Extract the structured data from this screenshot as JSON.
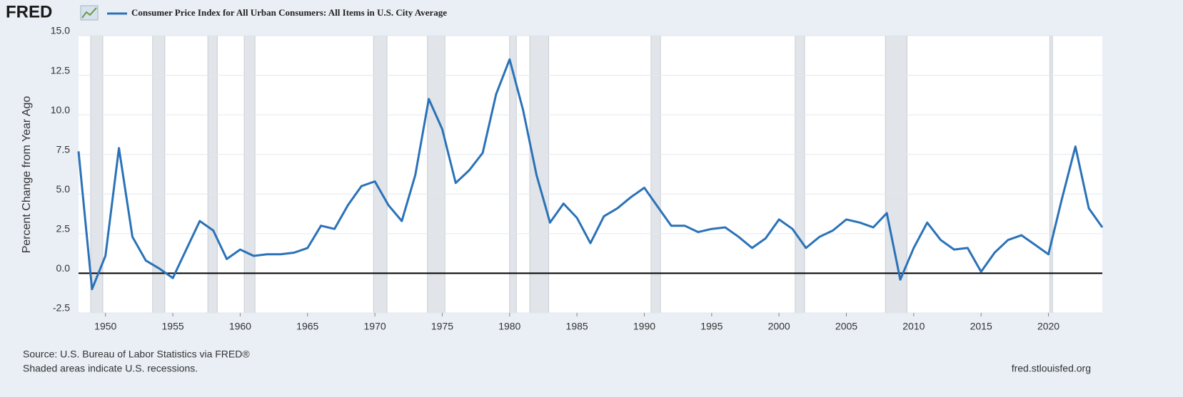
{
  "logo": "FRED",
  "chart_data": {
    "type": "line",
    "series": [
      {
        "name": "Consumer Price Index for All Urban Consumers: All Items in U.S. City Average",
        "color": "#2a72b8",
        "values": [
          7.7,
          -1.0,
          1.1,
          7.9,
          2.3,
          0.8,
          0.3,
          -0.3,
          1.5,
          3.3,
          2.7,
          0.9,
          1.5,
          1.1,
          1.2,
          1.2,
          1.3,
          1.6,
          3.0,
          2.8,
          4.3,
          5.5,
          5.8,
          4.3,
          3.3,
          6.2,
          11.0,
          9.1,
          5.7,
          6.5,
          7.6,
          11.3,
          13.5,
          10.3,
          6.2,
          3.2,
          4.4,
          3.5,
          1.9,
          3.6,
          4.1,
          4.8,
          5.4,
          4.2,
          3.0,
          3.0,
          2.6,
          2.8,
          2.9,
          2.3,
          1.6,
          2.2,
          3.4,
          2.8,
          1.6,
          2.3,
          2.7,
          3.4,
          3.2,
          2.9,
          3.8,
          -0.4,
          1.6,
          3.2,
          2.1,
          1.5,
          1.6,
          0.1,
          1.3,
          2.1,
          2.4,
          1.8,
          1.2,
          4.7,
          8.0,
          4.1,
          2.9
        ]
      }
    ],
    "x": [
      1948,
      1949,
      1950,
      1951,
      1952,
      1953,
      1954,
      1955,
      1956,
      1957,
      1958,
      1959,
      1960,
      1961,
      1962,
      1963,
      1964,
      1965,
      1966,
      1967,
      1968,
      1969,
      1970,
      1971,
      1972,
      1973,
      1974,
      1975,
      1976,
      1977,
      1978,
      1979,
      1980,
      1981,
      1982,
      1983,
      1984,
      1985,
      1986,
      1987,
      1988,
      1989,
      1990,
      1991,
      1992,
      1993,
      1994,
      1995,
      1996,
      1997,
      1998,
      1999,
      2000,
      2001,
      2002,
      2003,
      2004,
      2005,
      2006,
      2007,
      2008,
      2009,
      2010,
      2011,
      2012,
      2013,
      2014,
      2015,
      2016,
      2017,
      2018,
      2019,
      2020,
      2021,
      2022,
      2023,
      2024
    ],
    "xlim": [
      1948,
      2024
    ],
    "xticks": [
      1950,
      1955,
      1960,
      1965,
      1970,
      1975,
      1980,
      1985,
      1990,
      1995,
      2000,
      2005,
      2010,
      2015,
      2020
    ],
    "ylim": [
      -2.5,
      15
    ],
    "yticks": [
      {
        "value": 15,
        "label": "15.0"
      },
      12.5,
      {
        "value": 10,
        "label": "10.0"
      },
      7.5,
      {
        "value": 5,
        "label": "5.0"
      },
      2.5,
      {
        "value": 0,
        "label": "0.0"
      },
      -2.5
    ],
    "ylabel": "Percent Change from Year Ago",
    "grid": true,
    "recessions": [
      [
        1948.9,
        1949.8
      ],
      [
        1953.5,
        1954.4
      ],
      [
        1957.6,
        1958.3
      ],
      [
        1960.3,
        1961.1
      ],
      [
        1969.9,
        1970.9
      ],
      [
        1973.9,
        1975.2
      ],
      [
        1980.0,
        1980.5
      ],
      [
        1981.5,
        1982.9
      ],
      [
        1990.5,
        1991.2
      ],
      [
        2001.2,
        2001.9
      ],
      [
        2007.9,
        2009.5
      ],
      [
        2020.1,
        2020.3
      ]
    ],
    "source": "Source: U.S. Bureau of Labor Statistics via FRED®",
    "note": "Shaded areas indicate U.S. recessions.",
    "credit": "fred.stlouisfed.org"
  }
}
